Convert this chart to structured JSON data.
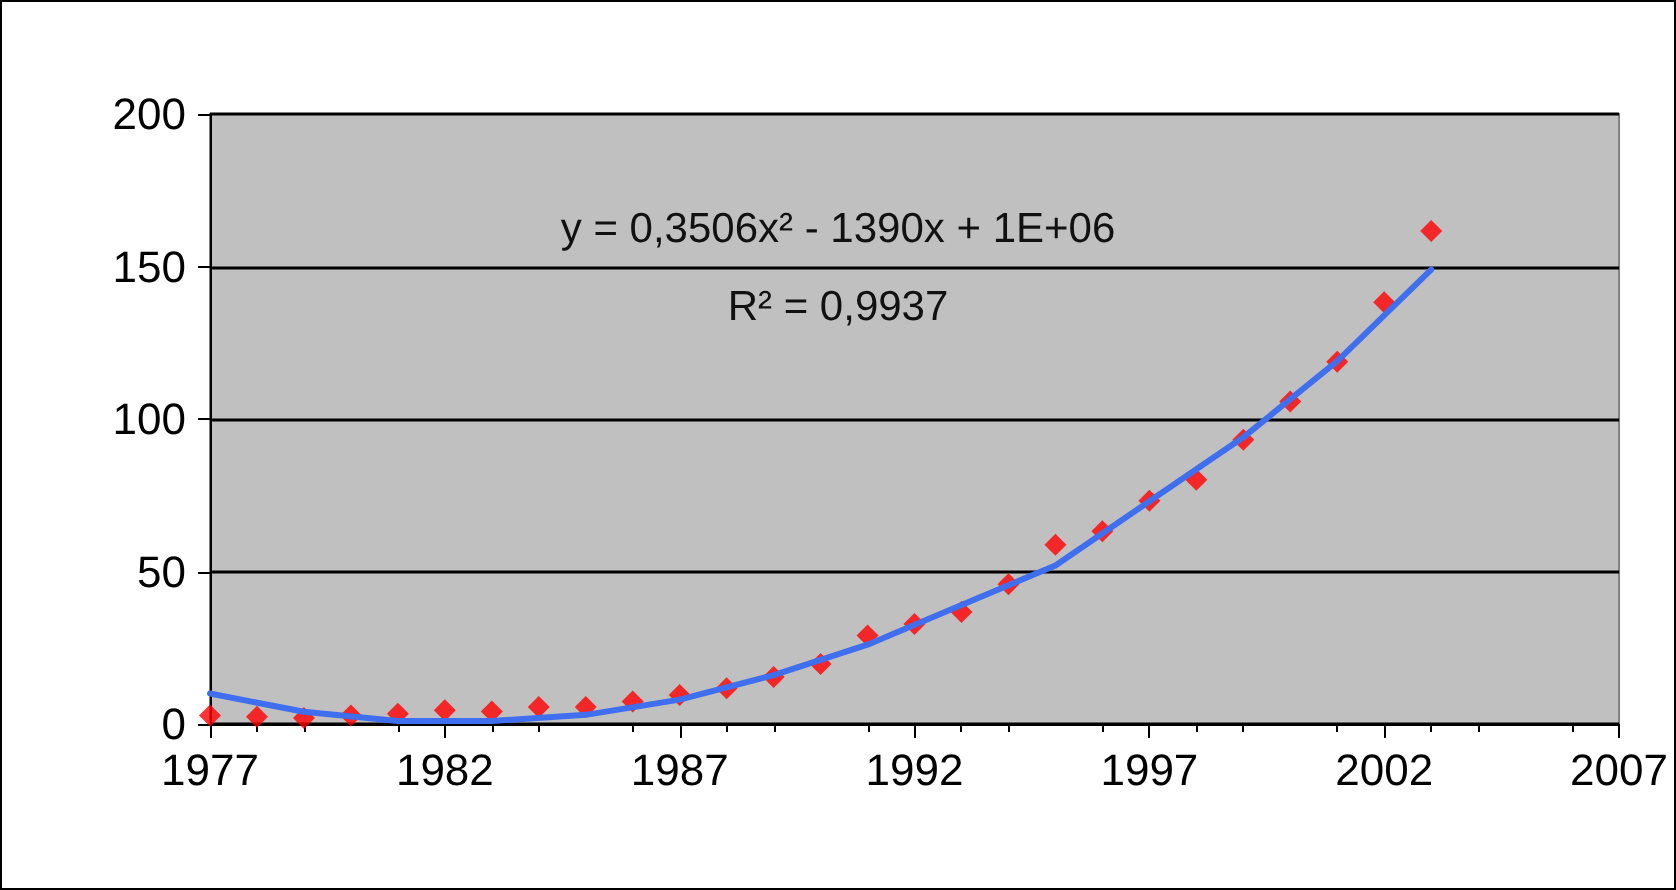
{
  "chart_data": {
    "type": "scatter",
    "x": [
      1977,
      1978,
      1979,
      1980,
      1981,
      1982,
      1983,
      1984,
      1985,
      1986,
      1987,
      1988,
      1989,
      1990,
      1991,
      1992,
      1993,
      1994,
      1995,
      1996,
      1997,
      1998,
      1999,
      2000,
      2001,
      2002,
      2003
    ],
    "series": [
      {
        "color": "#ff0000",
        "marker": "diamond",
        "values": [
          2.8,
          2.4,
          2,
          2.8,
          3.4,
          4.5,
          4.1,
          5.6,
          5.6,
          7.4,
          9.5,
          11.7,
          15.4,
          19.7,
          29,
          32.8,
          36.7,
          45.8,
          58.8,
          63.2,
          73.2,
          80.1,
          93.2,
          105.7,
          118.8,
          138.3,
          161.6
        ]
      },
      {
        "type": "line",
        "color": "#3f6fef",
        "marker": "none",
        "line_style": "solid",
        "x": [
          1977,
          1979,
          1981,
          1983,
          1985,
          1987,
          1989,
          1991,
          1993,
          1995,
          1997,
          1999,
          2001,
          2003
        ],
        "values": [
          10,
          4,
          1,
          1,
          3,
          8,
          16,
          26,
          39,
          52,
          73,
          94,
          119,
          149
        ]
      }
    ],
    "xlim": [
      1977,
      2007
    ],
    "xticks": [
      1977,
      1982,
      1987,
      1992,
      1997,
      2002,
      2007
    ],
    "ylim": [
      0,
      200
    ],
    "yticks": [
      0,
      50,
      100,
      150,
      200
    ],
    "grid": "y",
    "annotations": [
      "y = 0,3506x² - 1390x + 1E+06",
      "R² = 0,9937"
    ]
  }
}
